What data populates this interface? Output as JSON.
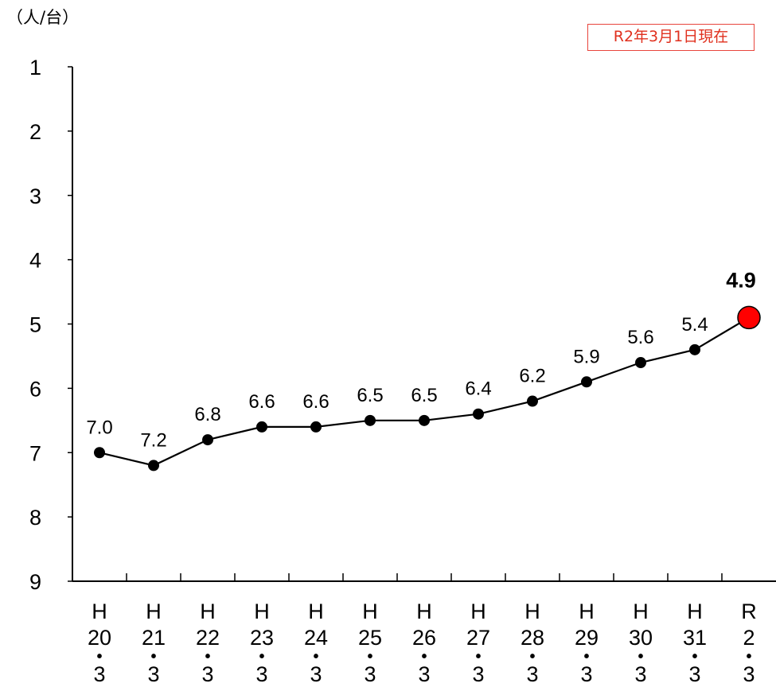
{
  "unit_label": "（人/台）",
  "date_badge": "R2年3月1日現在",
  "chart_data": {
    "type": "line",
    "title": "",
    "xlabel": "",
    "ylabel": "（人/台）",
    "y_inverted": true,
    "ylim": [
      1,
      9
    ],
    "yticks": [
      1,
      2,
      3,
      4,
      5,
      6,
      7,
      8,
      9
    ],
    "categories": [
      [
        "H",
        "20",
        "・",
        "3"
      ],
      [
        "H",
        "21",
        "・",
        "3"
      ],
      [
        "H",
        "22",
        "・",
        "3"
      ],
      [
        "H",
        "23",
        "・",
        "3"
      ],
      [
        "H",
        "24",
        "・",
        "3"
      ],
      [
        "H",
        "25",
        "・",
        "3"
      ],
      [
        "H",
        "26",
        "・",
        "3"
      ],
      [
        "H",
        "27",
        "・",
        "3"
      ],
      [
        "H",
        "28",
        "・",
        "3"
      ],
      [
        "H",
        "29",
        "・",
        "3"
      ],
      [
        "H",
        "30",
        "・",
        "3"
      ],
      [
        "H",
        "31",
        "・",
        "3"
      ],
      [
        "R",
        "2",
        "・",
        "3"
      ]
    ],
    "series": [
      {
        "values": [
          7.0,
          7.2,
          6.8,
          6.6,
          6.6,
          6.5,
          6.5,
          6.4,
          6.2,
          5.9,
          5.6,
          5.4,
          4.9
        ],
        "labels": [
          "7.0",
          "7.2",
          "6.8",
          "6.6",
          "6.6",
          "6.5",
          "6.5",
          "6.4",
          "6.2",
          "5.9",
          "5.6",
          "5.4",
          "4.9"
        ],
        "color": "#000000",
        "highlight_last_color": "#ff0000"
      }
    ],
    "grid": false,
    "legend": "none"
  }
}
